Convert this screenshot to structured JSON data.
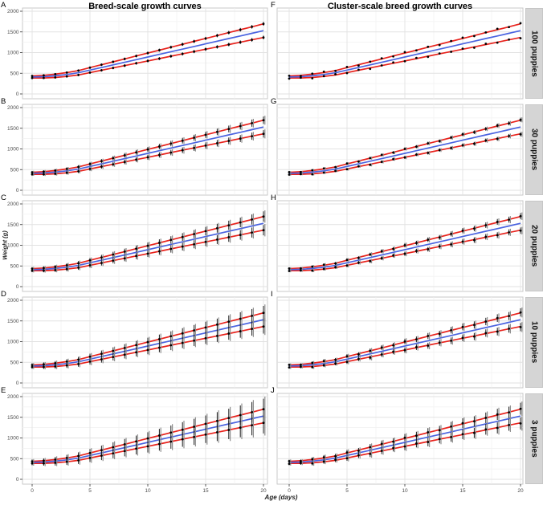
{
  "figure": {
    "titles": {
      "left": "Breed-scale growth curves",
      "right": "Cluster-scale breed growth curves"
    },
    "x_axis": {
      "label": "Age (days)",
      "ticks": [
        0,
        5,
        10,
        15,
        20
      ],
      "range": [
        0,
        20
      ]
    },
    "y_axis": {
      "label": "Weight (g)",
      "ticks": [
        0,
        500,
        1000,
        1500,
        2000
      ],
      "range": [
        0,
        2000
      ]
    },
    "rows": [
      {
        "strip_label": "100 puppies"
      },
      {
        "strip_label": "30 puppies"
      },
      {
        "strip_label": "20 puppies"
      },
      {
        "strip_label": "10 puppies"
      },
      {
        "strip_label": "3 puppies"
      }
    ],
    "colors": {
      "mean_line": "#4a63e0",
      "ci_line": "#e8231d",
      "point": "#000000",
      "errorbar": "#1a1a1a",
      "errorbar_secondary": "#8f8f8f",
      "strip_bg": "#d5d5d5",
      "grid_major": "#e2e2e2",
      "grid_minor": "#f1f1f1",
      "panel_border": "#c9c9c9",
      "tick_text": "#4d4d4d"
    }
  },
  "chart_data": {
    "type": "line",
    "xlabel": "Age (days)",
    "ylabel": "Weight (g)",
    "xlim": [
      0,
      20
    ],
    "ylim": [
      0,
      2000
    ],
    "x_ticks": [
      0,
      5,
      10,
      15,
      20
    ],
    "y_ticks": [
      0,
      500,
      1000,
      1500,
      2000
    ],
    "grid": true,
    "columns": [
      {
        "title": "Breed-scale growth curves"
      },
      {
        "title": "Cluster-scale breed growth curves"
      }
    ],
    "x": [
      0,
      1,
      2,
      3,
      4,
      5,
      6,
      7,
      8,
      9,
      10,
      11,
      12,
      13,
      14,
      15,
      16,
      17,
      18,
      19,
      20
    ],
    "series": [
      {
        "name": "mean_growth",
        "color": "#4a63e0",
        "values": [
          410,
          418,
          438,
          470,
          512,
          576,
          639,
          703,
          766,
          830,
          894,
          957,
          1021,
          1084,
          1148,
          1212,
          1275,
          1339,
          1402,
          1466,
          1530
        ]
      },
      {
        "name": "upper_centile",
        "color": "#e8231d",
        "values": [
          435,
          450,
          477,
          516,
          565,
          636,
          706,
          777,
          847,
          918,
          989,
          1059,
          1130,
          1200,
          1271,
          1342,
          1412,
          1483,
          1553,
          1624,
          1695
        ]
      },
      {
        "name": "lower_centile",
        "color": "#e8231d",
        "values": [
          385,
          386,
          399,
          424,
          459,
          516,
          572,
          629,
          685,
          742,
          799,
          855,
          912,
          968,
          1025,
          1082,
          1138,
          1195,
          1251,
          1308,
          1365
        ]
      }
    ],
    "panels": [
      {
        "letter": "A",
        "row": 0,
        "col": 0,
        "group": "100 puppies",
        "err0": 25,
        "err1": 1.0,
        "jitter": 0,
        "gray": false
      },
      {
        "letter": "B",
        "row": 1,
        "col": 0,
        "group": "30 puppies",
        "err0": 30,
        "err1": 3.0,
        "jitter": 0,
        "gray": true
      },
      {
        "letter": "C",
        "row": 2,
        "col": 0,
        "group": "20 puppies",
        "err0": 35,
        "err1": 4.5,
        "jitter": 0,
        "gray": true
      },
      {
        "letter": "D",
        "row": 3,
        "col": 0,
        "group": "10 puppies",
        "err0": 40,
        "err1": 6.5,
        "jitter": 0,
        "gray": true
      },
      {
        "letter": "E",
        "row": 4,
        "col": 0,
        "group": "3 puppies",
        "err0": 45,
        "err1": 10.5,
        "jitter": 0,
        "gray": true
      },
      {
        "letter": "F",
        "row": 0,
        "col": 1,
        "group": "100 puppies",
        "err0": 0,
        "err1": 0,
        "jitter": 25,
        "gray": false
      },
      {
        "letter": "G",
        "row": 1,
        "col": 1,
        "group": "30 puppies",
        "err0": 20,
        "err1": 1.5,
        "jitter": 15,
        "gray": true
      },
      {
        "letter": "H",
        "row": 2,
        "col": 1,
        "group": "20 puppies",
        "err0": 25,
        "err1": 2.5,
        "jitter": 15,
        "gray": true
      },
      {
        "letter": "I",
        "row": 3,
        "col": 1,
        "group": "10 puppies",
        "err0": 30,
        "err1": 3.5,
        "jitter": 18,
        "gray": true
      },
      {
        "letter": "J",
        "row": 4,
        "col": 1,
        "group": "3 puppies",
        "err0": 35,
        "err1": 5.5,
        "jitter": 20,
        "gray": true
      }
    ],
    "jitter_upper": [
      0.2,
      -0.6,
      0.5,
      0.9,
      -0.3,
      0.7,
      -0.8,
      0.1,
      0.6,
      -0.4,
      0.9,
      -0.2,
      0.4,
      -0.7,
      0.3,
      0.8,
      -0.5,
      0.2,
      0.9,
      -0.3,
      0.6
    ],
    "jitter_lower": [
      -0.5,
      0.3,
      -0.8,
      0.2,
      0.7,
      -0.4,
      0.5,
      -0.9,
      0.2,
      0.8,
      -0.3,
      0.6,
      -0.6,
      0.4,
      -0.2,
      0.5,
      -0.8,
      0.7,
      -0.4,
      0.3,
      -0.7
    ]
  }
}
